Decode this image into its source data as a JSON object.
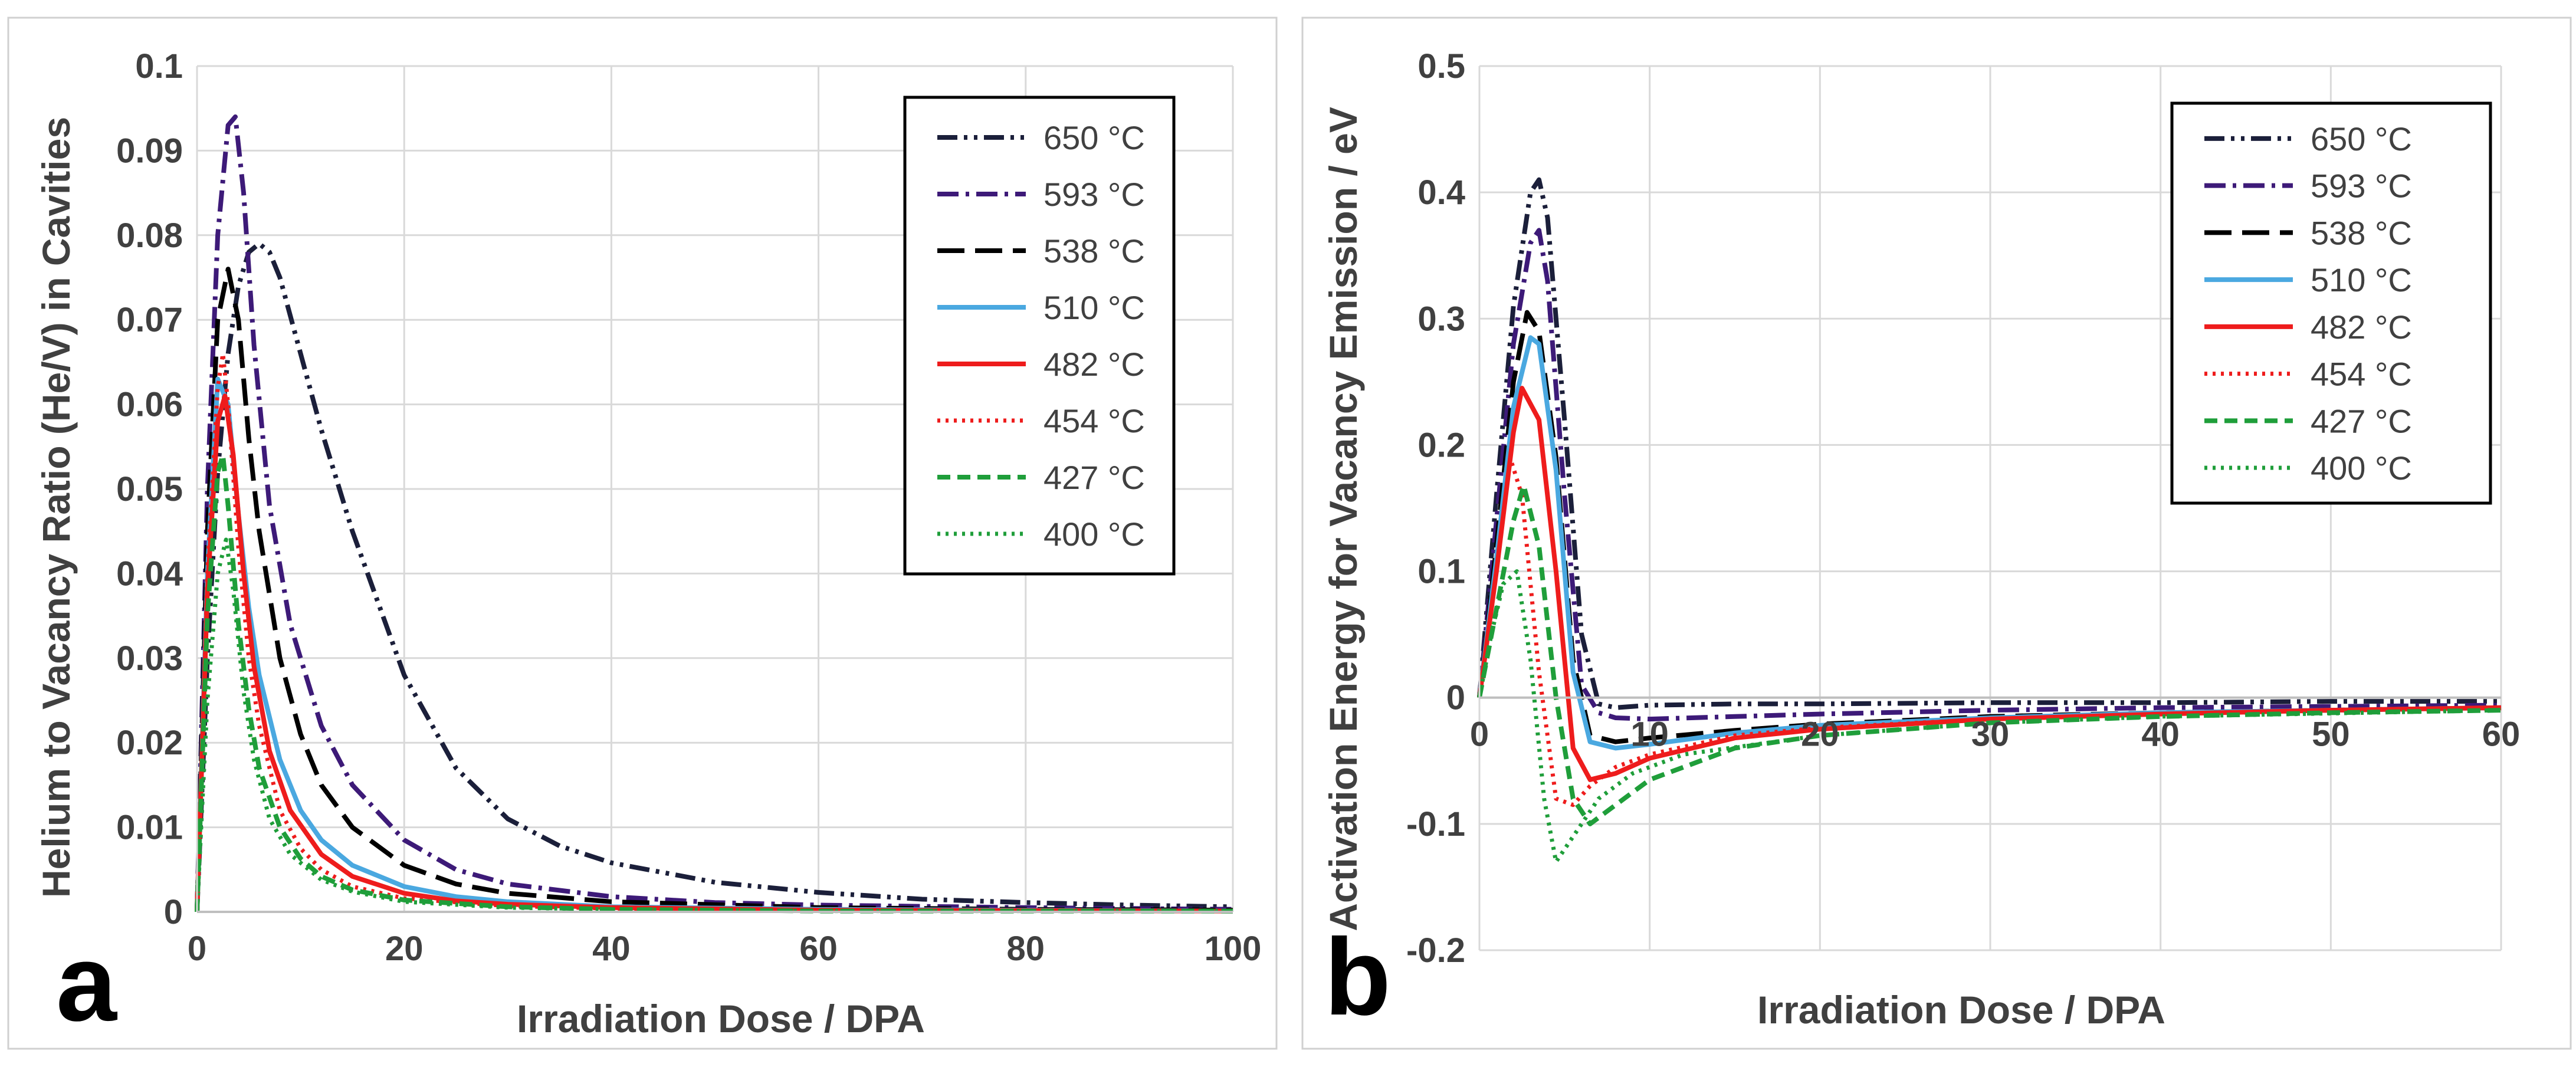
{
  "chart_data": [
    {
      "type": "line",
      "panel_label": "a",
      "title": "",
      "xlabel": "Irradiation Dose / DPA",
      "ylabel": "Helium to Vacancy Ratio (He/V) in Cavities",
      "xlim": [
        0,
        100
      ],
      "ylim": [
        0,
        0.1
      ],
      "xticks": [
        "0",
        "20",
        "40",
        "60",
        "80",
        "100"
      ],
      "yticks": [
        "0",
        "0.01",
        "0.02",
        "0.03",
        "0.04",
        "0.05",
        "0.06",
        "0.07",
        "0.08",
        "0.09",
        "0.1"
      ],
      "grid": true,
      "legend_position": "top-right",
      "series": [
        {
          "name": "650 °C",
          "color": "#1b1f3a",
          "dash": "dash-dot-dot",
          "x": [
            0,
            1,
            2,
            3,
            4,
            5,
            6,
            7,
            8,
            10,
            12,
            15,
            20,
            25,
            30,
            35,
            40,
            50,
            60,
            70,
            80,
            90,
            100
          ],
          "y": [
            0,
            0.03,
            0.052,
            0.066,
            0.074,
            0.078,
            0.079,
            0.078,
            0.075,
            0.066,
            0.057,
            0.045,
            0.028,
            0.017,
            0.011,
            0.0078,
            0.0058,
            0.0035,
            0.0023,
            0.0015,
            0.0011,
            0.0008,
            0.0006
          ]
        },
        {
          "name": "593 °C",
          "color": "#3d1a78",
          "dash": "dash-dot",
          "x": [
            0,
            1,
            2,
            3,
            3.7,
            4.5,
            5.5,
            7,
            9,
            12,
            15,
            20,
            25,
            30,
            40,
            50,
            60,
            80,
            100
          ],
          "y": [
            0,
            0.05,
            0.08,
            0.093,
            0.094,
            0.085,
            0.067,
            0.048,
            0.034,
            0.022,
            0.015,
            0.0085,
            0.005,
            0.0033,
            0.0018,
            0.0011,
            0.0008,
            0.0005,
            0.0003
          ]
        },
        {
          "name": "538 °C",
          "color": "#000000",
          "dash": "long-dash",
          "x": [
            0,
            1,
            2,
            3,
            4,
            5,
            6,
            8,
            10,
            12,
            15,
            20,
            25,
            30,
            40,
            60,
            80,
            100
          ],
          "y": [
            0,
            0.045,
            0.07,
            0.076,
            0.07,
            0.056,
            0.045,
            0.03,
            0.021,
            0.015,
            0.01,
            0.0055,
            0.0033,
            0.0022,
            0.0012,
            0.0005,
            0.0003,
            0.0002
          ]
        },
        {
          "name": "510 °C",
          "color": "#4aa8e0",
          "dash": "solid",
          "x": [
            0,
            1,
            2,
            3,
            4,
            5,
            6,
            8,
            10,
            12,
            15,
            20,
            25,
            30,
            40,
            60,
            100
          ],
          "y": [
            0,
            0.04,
            0.063,
            0.06,
            0.047,
            0.036,
            0.028,
            0.018,
            0.012,
            0.0085,
            0.0055,
            0.003,
            0.0018,
            0.0012,
            0.0006,
            0.0003,
            0.0001
          ]
        },
        {
          "name": "482 °C",
          "color": "#ee1c1c",
          "dash": "solid",
          "x": [
            0,
            1,
            2,
            2.7,
            3.5,
            4.5,
            5.5,
            7,
            9,
            12,
            15,
            20,
            25,
            30,
            40,
            60,
            100
          ],
          "y": [
            0,
            0.038,
            0.058,
            0.061,
            0.054,
            0.04,
            0.029,
            0.019,
            0.012,
            0.0068,
            0.0042,
            0.0022,
            0.0013,
            0.0009,
            0.0005,
            0.0002,
            0.0001
          ]
        },
        {
          "name": "454 °C",
          "color": "#ee1c1c",
          "dash": "dotted",
          "x": [
            0,
            1,
            2,
            2.5,
            3,
            4,
            5,
            6,
            8,
            10,
            12,
            15,
            20,
            30,
            40,
            60,
            100
          ],
          "y": [
            0,
            0.04,
            0.062,
            0.066,
            0.06,
            0.043,
            0.03,
            0.022,
            0.012,
            0.0075,
            0.005,
            0.003,
            0.0016,
            0.0007,
            0.0004,
            0.0002,
            0.0001
          ]
        },
        {
          "name": "427 °C",
          "color": "#1f9e3a",
          "dash": "dashed",
          "x": [
            0,
            1,
            2,
            2.5,
            3,
            4,
            5,
            6,
            8,
            10,
            12,
            15,
            20,
            30,
            40,
            60,
            100
          ],
          "y": [
            0,
            0.035,
            0.052,
            0.054,
            0.048,
            0.034,
            0.024,
            0.017,
            0.01,
            0.0063,
            0.0042,
            0.0026,
            0.0014,
            0.0006,
            0.0003,
            0.0001,
            0.0001
          ]
        },
        {
          "name": "400 °C",
          "color": "#1f9e3a",
          "dash": "dotted",
          "x": [
            0,
            1,
            2,
            2.8,
            3.5,
            4.5,
            5.5,
            7,
            9,
            12,
            15,
            20,
            30,
            40,
            60,
            100
          ],
          "y": [
            0,
            0.025,
            0.04,
            0.044,
            0.038,
            0.026,
            0.018,
            0.011,
            0.0068,
            0.0038,
            0.0024,
            0.0012,
            0.0005,
            0.0003,
            0.0001,
            0.0001
          ]
        }
      ]
    },
    {
      "type": "line",
      "panel_label": "b",
      "title": "",
      "xlabel": "Irradiation Dose / DPA",
      "ylabel": "Activation Energy for Vacancy Emission / eV",
      "xlim": [
        0,
        60
      ],
      "ylim": [
        -0.2,
        0.5
      ],
      "xticks": [
        "0",
        "10",
        "20",
        "30",
        "40",
        "50",
        "60"
      ],
      "yticks": [
        "-0.2",
        "-0.1",
        "0",
        "0.1",
        "0.2",
        "0.3",
        "0.4",
        "0.5"
      ],
      "grid": true,
      "legend_position": "top-right",
      "series": [
        {
          "name": "650 °C",
          "color": "#1b1f3a",
          "dash": "dash-dot-dot",
          "x": [
            0,
            1,
            2,
            3,
            3.5,
            4,
            5,
            6,
            7,
            8,
            10,
            15,
            20,
            30,
            40,
            50,
            60
          ],
          "y": [
            0,
            0.16,
            0.31,
            0.4,
            0.41,
            0.38,
            0.22,
            0.05,
            -0.005,
            -0.008,
            -0.006,
            -0.005,
            -0.005,
            -0.004,
            -0.004,
            -0.003,
            -0.003
          ]
        },
        {
          "name": "593 °C",
          "color": "#3d1a78",
          "dash": "dash-dot",
          "x": [
            0,
            1,
            2,
            3,
            3.5,
            4,
            5,
            6,
            7,
            8,
            10,
            15,
            20,
            30,
            40,
            50,
            60
          ],
          "y": [
            0,
            0.14,
            0.28,
            0.36,
            0.37,
            0.33,
            0.16,
            0.01,
            -0.012,
            -0.016,
            -0.017,
            -0.015,
            -0.013,
            -0.01,
            -0.008,
            -0.007,
            -0.006
          ]
        },
        {
          "name": "538 °C",
          "color": "#000000",
          "dash": "long-dash",
          "x": [
            0,
            1,
            2,
            2.8,
            3.5,
            4.5,
            5.5,
            6.5,
            8,
            10,
            15,
            20,
            30,
            40,
            50,
            60
          ],
          "y": [
            0,
            0.12,
            0.25,
            0.305,
            0.29,
            0.19,
            0.03,
            -0.03,
            -0.035,
            -0.032,
            -0.026,
            -0.021,
            -0.015,
            -0.012,
            -0.01,
            -0.008
          ]
        },
        {
          "name": "510 °C",
          "color": "#4aa8e0",
          "dash": "solid",
          "x": [
            0,
            1,
            2,
            3,
            3.5,
            4.5,
            5.5,
            6.5,
            8,
            10,
            15,
            20,
            30,
            40,
            50,
            60
          ],
          "y": [
            0,
            0.11,
            0.23,
            0.285,
            0.28,
            0.18,
            0.02,
            -0.035,
            -0.04,
            -0.037,
            -0.028,
            -0.022,
            -0.016,
            -0.012,
            -0.01,
            -0.008
          ]
        },
        {
          "name": "482 °C",
          "color": "#ee1c1c",
          "dash": "solid",
          "x": [
            0,
            1,
            2,
            2.5,
            3.5,
            4.5,
            5.5,
            6.5,
            8,
            10,
            15,
            20,
            30,
            40,
            50,
            60
          ],
          "y": [
            0,
            0.1,
            0.21,
            0.245,
            0.22,
            0.1,
            -0.04,
            -0.065,
            -0.06,
            -0.048,
            -0.032,
            -0.025,
            -0.017,
            -0.013,
            -0.01,
            -0.008
          ]
        },
        {
          "name": "454 °C",
          "color": "#ee1c1c",
          "dash": "dotted",
          "x": [
            0,
            1,
            1.8,
            2.5,
            3.5,
            4.5,
            5.5,
            6.5,
            8,
            10,
            15,
            20,
            30,
            40,
            60
          ],
          "y": [
            0,
            0.1,
            0.19,
            0.16,
            0.02,
            -0.08,
            -0.085,
            -0.07,
            -0.055,
            -0.045,
            -0.03,
            -0.024,
            -0.017,
            -0.013,
            -0.009
          ]
        },
        {
          "name": "427 °C",
          "color": "#1f9e3a",
          "dash": "dashed",
          "x": [
            0,
            1,
            2,
            2.6,
            3.5,
            4.5,
            5.5,
            6.5,
            8,
            10,
            15,
            20,
            30,
            40,
            50,
            60
          ],
          "y": [
            0,
            0.07,
            0.14,
            0.168,
            0.12,
            0.0,
            -0.08,
            -0.1,
            -0.085,
            -0.065,
            -0.04,
            -0.03,
            -0.02,
            -0.015,
            -0.012,
            -0.01
          ]
        },
        {
          "name": "400 °C",
          "color": "#1f9e3a",
          "dash": "dotted",
          "x": [
            0,
            0.7,
            1.4,
            2.2,
            3,
            3.8,
            4.5,
            5.5,
            7,
            9,
            12,
            20,
            30,
            40,
            60
          ],
          "y": [
            0,
            0.05,
            0.09,
            0.1,
            0.03,
            -0.08,
            -0.13,
            -0.11,
            -0.08,
            -0.06,
            -0.045,
            -0.03,
            -0.02,
            -0.015,
            -0.01
          ]
        }
      ]
    }
  ]
}
